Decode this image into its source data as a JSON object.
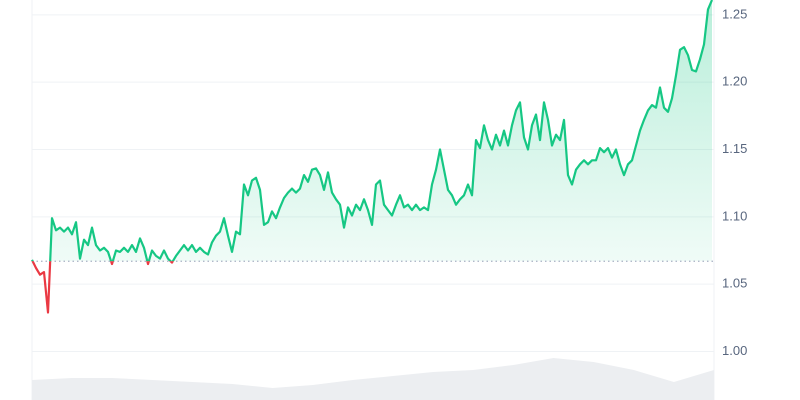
{
  "chart_data": {
    "type": "line",
    "values": [
      1.068,
      1.062,
      1.057,
      1.059,
      1.029,
      1.099,
      1.09,
      1.092,
      1.089,
      1.092,
      1.087,
      1.096,
      1.069,
      1.083,
      1.079,
      1.092,
      1.079,
      1.075,
      1.077,
      1.074,
      1.065,
      1.075,
      1.074,
      1.077,
      1.074,
      1.079,
      1.074,
      1.084,
      1.077,
      1.065,
      1.075,
      1.071,
      1.069,
      1.075,
      1.069,
      1.066,
      1.071,
      1.075,
      1.079,
      1.075,
      1.079,
      1.074,
      1.077,
      1.074,
      1.072,
      1.081,
      1.086,
      1.089,
      1.099,
      1.086,
      1.074,
      1.089,
      1.087,
      1.124,
      1.116,
      1.127,
      1.129,
      1.12,
      1.094,
      1.096,
      1.104,
      1.099,
      1.107,
      1.114,
      1.118,
      1.121,
      1.118,
      1.121,
      1.131,
      1.126,
      1.135,
      1.136,
      1.131,
      1.12,
      1.133,
      1.118,
      1.113,
      1.109,
      1.092,
      1.107,
      1.101,
      1.109,
      1.105,
      1.113,
      1.105,
      1.094,
      1.124,
      1.127,
      1.109,
      1.105,
      1.101,
      1.109,
      1.116,
      1.107,
      1.109,
      1.105,
      1.109,
      1.105,
      1.107,
      1.105,
      1.124,
      1.135,
      1.15,
      1.135,
      1.12,
      1.116,
      1.109,
      1.113,
      1.116,
      1.124,
      1.116,
      1.157,
      1.151,
      1.168,
      1.157,
      1.15,
      1.161,
      1.153,
      1.164,
      1.153,
      1.168,
      1.179,
      1.185,
      1.159,
      1.15,
      1.168,
      1.176,
      1.157,
      1.185,
      1.172,
      1.153,
      1.161,
      1.157,
      1.172,
      1.131,
      1.124,
      1.135,
      1.139,
      1.142,
      1.139,
      1.142,
      1.142,
      1.151,
      1.148,
      1.151,
      1.144,
      1.15,
      1.139,
      1.131,
      1.139,
      1.142,
      1.153,
      1.164,
      1.172,
      1.179,
      1.183,
      1.181,
      1.196,
      1.181,
      1.178,
      1.188,
      1.205,
      1.224,
      1.226,
      1.22,
      1.209,
      1.208,
      1.217,
      1.228,
      1.254,
      1.261
    ],
    "color": "#16c784",
    "negative_color": "#ea3943",
    "baseline": 1.067,
    "ylim": [
      0.964,
      1.261
    ],
    "yticks": [
      {
        "value": 1,
        "label": "1.00"
      },
      1.05,
      {
        "value": 1.1,
        "label": "1.10"
      },
      1.15,
      {
        "value": 1.2,
        "label": "1.20"
      },
      1.25
    ],
    "grid": true,
    "volume": {
      "values": [
        20,
        22,
        22,
        20,
        18,
        16,
        12,
        15,
        20,
        24,
        28,
        30,
        35,
        42,
        38,
        30,
        18,
        30
      ],
      "color": "#eceef1",
      "axis": "y2"
    },
    "y2lim": [
      0,
      400
    ]
  }
}
